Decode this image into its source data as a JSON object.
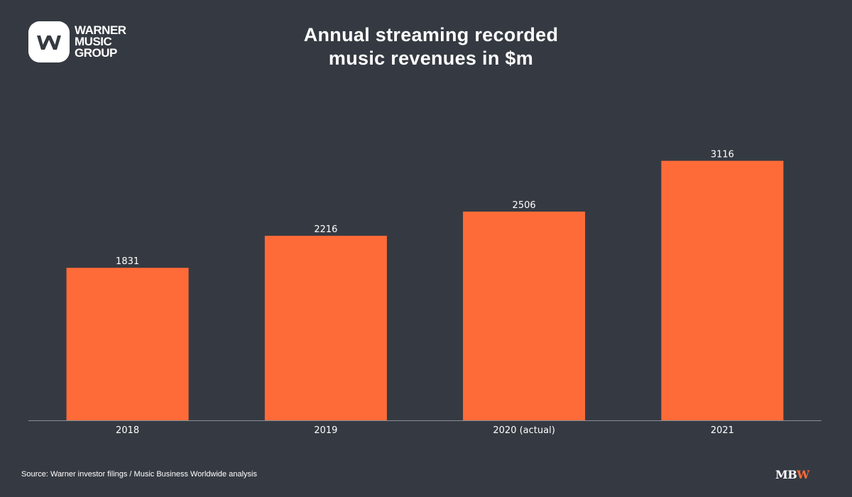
{
  "logo": {
    "lines": [
      "WARNER",
      "MUSIC",
      "GROUP"
    ]
  },
  "title_lines": [
    "Annual streaming recorded",
    "music revenues in $m"
  ],
  "footer": {
    "source": "Source: Warner investor filings / Music Business Worldwide analysis",
    "brand_part1": "MB",
    "brand_part2": "W"
  },
  "colors": {
    "background": "#353a42",
    "bar": "#ff6b38",
    "axis": "#8a8f96",
    "text": "#ffffff"
  },
  "chart_data": {
    "type": "bar",
    "title": "Annual streaming recorded music revenues in $m",
    "categories": [
      "2018",
      "2019",
      "2020 (actual)",
      "2021"
    ],
    "values": [
      1831,
      2216,
      2506,
      3116
    ],
    "value_labels": [
      "1831",
      "2216",
      "2506",
      "3116"
    ],
    "xlabel": "",
    "ylabel": "",
    "ylim": [
      0,
      3600
    ],
    "grid": false,
    "legend": "none"
  }
}
